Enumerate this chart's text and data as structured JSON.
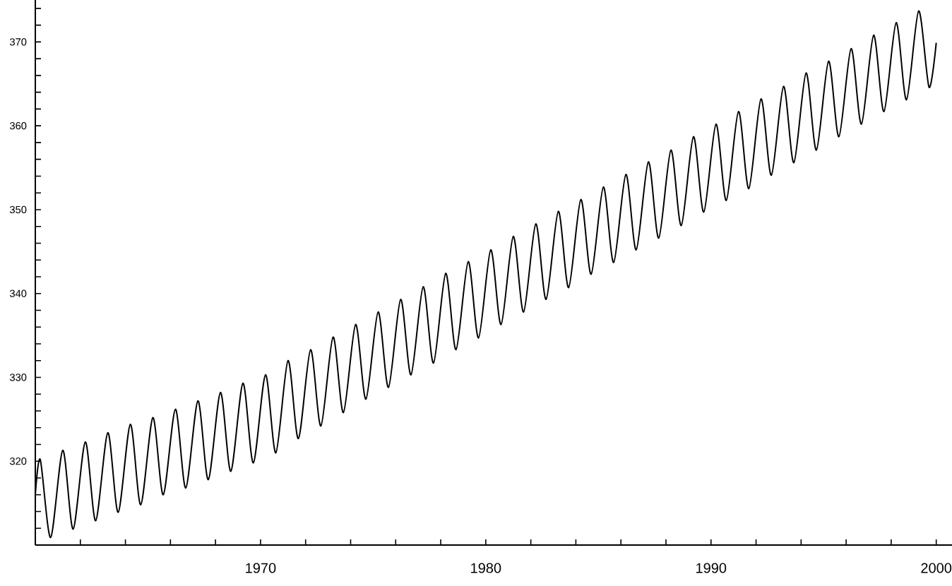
{
  "chart_data": {
    "type": "line",
    "marker": "none",
    "xlim": [
      1960,
      2000.7
    ],
    "ylim": [
      310,
      375
    ],
    "xticks": [
      {
        "value": 1962,
        "label": null
      },
      {
        "value": 1964,
        "label": null
      },
      {
        "value": 1966,
        "label": null
      },
      {
        "value": 1968,
        "label": null
      },
      1970,
      {
        "value": 1972,
        "label": null
      },
      {
        "value": 1974,
        "label": null
      },
      {
        "value": 1976,
        "label": null
      },
      {
        "value": 1978,
        "label": null
      },
      1980,
      {
        "value": 1982,
        "label": null
      },
      {
        "value": 1984,
        "label": null
      },
      {
        "value": 1986,
        "label": null
      },
      {
        "value": 1988,
        "label": null
      },
      1990,
      {
        "value": 1992,
        "label": null
      },
      {
        "value": 1994,
        "label": null
      },
      {
        "value": 1996,
        "label": null
      },
      {
        "value": 1998,
        "label": null
      },
      2000
    ],
    "yticks": [
      {
        "value": 312,
        "label": null
      },
      {
        "value": 314,
        "label": null
      },
      {
        "value": 316,
        "label": null
      },
      {
        "value": 318,
        "label": null
      },
      320,
      {
        "value": 322,
        "label": null
      },
      {
        "value": 324,
        "label": null
      },
      {
        "value": 326,
        "label": null
      },
      {
        "value": 328,
        "label": null
      },
      330,
      {
        "value": 332,
        "label": null
      },
      {
        "value": 334,
        "label": null
      },
      {
        "value": 336,
        "label": null
      },
      {
        "value": 338,
        "label": null
      },
      340,
      {
        "value": 342,
        "label": null
      },
      {
        "value": 344,
        "label": null
      },
      {
        "value": 346,
        "label": null
      },
      {
        "value": 348,
        "label": null
      },
      350,
      {
        "value": 352,
        "label": null
      },
      {
        "value": 354,
        "label": null
      },
      {
        "value": 356,
        "label": null
      },
      {
        "value": 358,
        "label": null
      },
      360,
      {
        "value": 362,
        "label": null
      },
      {
        "value": 364,
        "label": null
      },
      {
        "value": 366,
        "label": null
      },
      {
        "value": 368,
        "label": null
      },
      370,
      {
        "value": 372,
        "label": null
      },
      {
        "value": 374,
        "label": null
      }
    ],
    "series": [
      {
        "color": "#000000",
        "x": [
          1960.0,
          1960.22,
          1960.68,
          1961.22,
          1961.68,
          1962.22,
          1962.68,
          1963.22,
          1963.68,
          1964.22,
          1964.68,
          1965.22,
          1965.68,
          1966.22,
          1966.68,
          1967.22,
          1967.68,
          1968.22,
          1968.68,
          1969.22,
          1969.68,
          1970.22,
          1970.68,
          1971.22,
          1971.68,
          1972.22,
          1972.68,
          1973.22,
          1973.68,
          1974.22,
          1974.68,
          1975.22,
          1975.68,
          1976.22,
          1976.68,
          1977.22,
          1977.68,
          1978.22,
          1978.68,
          1979.22,
          1979.68,
          1980.22,
          1980.68,
          1981.22,
          1981.68,
          1982.22,
          1982.68,
          1983.22,
          1983.68,
          1984.22,
          1984.68,
          1985.22,
          1985.68,
          1986.22,
          1986.68,
          1987.22,
          1987.68,
          1988.22,
          1988.68,
          1989.22,
          1989.68,
          1990.22,
          1990.68,
          1991.22,
          1991.68,
          1992.22,
          1992.68,
          1993.22,
          1993.68,
          1994.22,
          1994.68,
          1995.22,
          1995.68,
          1996.22,
          1996.68,
          1997.22,
          1997.68,
          1998.22,
          1998.68,
          1999.22,
          1999.68,
          2000.0
        ],
        "values": [
          316.0,
          320.2,
          310.9,
          321.3,
          311.9,
          322.3,
          312.9,
          323.4,
          313.9,
          324.4,
          314.8,
          325.2,
          316.0,
          326.2,
          316.8,
          327.2,
          317.8,
          328.2,
          318.8,
          329.3,
          319.8,
          330.3,
          321.0,
          332.0,
          322.7,
          333.3,
          324.2,
          334.8,
          325.8,
          336.3,
          327.4,
          337.8,
          328.8,
          339.3,
          330.3,
          340.8,
          331.7,
          342.4,
          333.3,
          343.8,
          334.7,
          345.2,
          336.3,
          346.8,
          337.8,
          348.3,
          339.3,
          349.8,
          340.7,
          351.2,
          342.3,
          352.7,
          343.7,
          354.2,
          345.2,
          355.7,
          346.6,
          357.1,
          348.1,
          358.7,
          349.7,
          360.2,
          351.1,
          361.7,
          352.5,
          363.2,
          354.1,
          364.7,
          355.6,
          366.3,
          357.1,
          367.7,
          358.7,
          369.2,
          360.2,
          370.8,
          361.7,
          372.3,
          363.1,
          373.7,
          364.6,
          369.9
        ]
      }
    ]
  }
}
